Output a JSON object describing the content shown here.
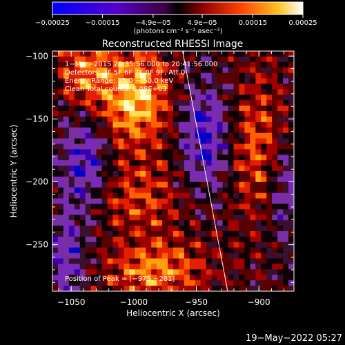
{
  "chart_data": {
    "type": "heatmap",
    "title": "Reconstructed RHESSI Image",
    "xlabel": "Heliocentric X (arcsec)",
    "ylabel": "Heliocentric Y (arcsec)",
    "xlim": [
      -1065,
      -872
    ],
    "ylim": [
      -287,
      -96
    ],
    "x_ticks": [
      -1050,
      -1000,
      -950,
      -900
    ],
    "x_tick_labels": [
      "−1050",
      "−1000",
      "−950",
      "−900"
    ],
    "y_ticks": [
      -250,
      -200,
      -150,
      -100
    ],
    "y_tick_labels": [
      "−250",
      "−200",
      "−150",
      "−100"
    ],
    "colorbar": {
      "range": [
        -0.00025,
        0.00025
      ],
      "ticks": [
        -0.00025,
        -0.00015,
        -4.9e-05,
        4.9e-05,
        0.00015,
        0.00025
      ],
      "tick_labels": [
        "−0.00025",
        "−0.00015",
        "−4.9e−05",
        "4.9e−05",
        "0.00015",
        "0.00025"
      ],
      "units_label": "(photons cm⁻² s⁻¹ asec⁻²)"
    },
    "annotations": [
      "1−Mar−2015 20:35:56.000 to 20:41:56.000",
      "Detectors: 3F 5F 6F 7F 8F 9F, Att 0",
      "Energy Range: 25.0 − 50.0 keV",
      "Clean     Total counts: 8.08E+03",
      "Position of Peak = [−975,−281]"
    ],
    "peak_position": [
      -975,
      -281
    ],
    "limb_line": [
      [
        -961,
        -96
      ],
      [
        -925,
        -287
      ]
    ],
    "colors": [
      "#0000c8",
      "#3a00b0",
      "#7a2ab8",
      "#7830a0",
      "#3a1030",
      "#100008",
      "#5a0000",
      "#a00000",
      "#e02000",
      "#ff6000",
      "#ffa010",
      "#ffe050",
      "#ffffcc"
    ]
  },
  "footer": {
    "timestamp": "19−May−2022 05:27"
  }
}
